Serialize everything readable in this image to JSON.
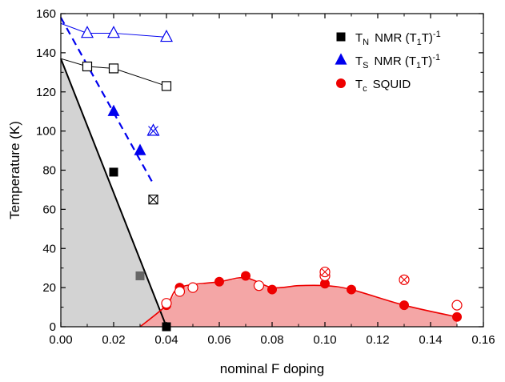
{
  "chart_data": {
    "type": "scatter",
    "title": "",
    "xlabel": "nominal F doping",
    "ylabel": "Temperature (K)",
    "xlim": [
      0.0,
      0.16
    ],
    "ylim": [
      0,
      160
    ],
    "xticks": [
      "0.00",
      "0.02",
      "0.04",
      "0.06",
      "0.08",
      "0.10",
      "0.12",
      "0.14",
      "0.16"
    ],
    "yticks": [
      "0",
      "20",
      "40",
      "60",
      "80",
      "100",
      "120",
      "140",
      "160"
    ],
    "legend_position": "top-right",
    "legend": [
      {
        "marker": "filled-square",
        "color": "#000000",
        "main": "T",
        "sub": "N",
        "text": "NMR (T",
        "sub2": "1",
        "tail": "T)",
        "sup": "-1"
      },
      {
        "marker": "filled-triangle",
        "color": "#0000ee",
        "main": "T",
        "sub": "S",
        "text": "NMR (T",
        "sub2": "1",
        "tail": "T)",
        "sup": "-1"
      },
      {
        "marker": "filled-circle",
        "color": "#ee0000",
        "main": "T",
        "sub": "c",
        "text": "SQUID",
        "sub2": "",
        "tail": "",
        "sup": ""
      }
    ],
    "series": [
      {
        "key": "tn_nmr",
        "color": "#000000",
        "marker": "filled-square",
        "points": [
          [
            0.02,
            79
          ],
          [
            0.03,
            26
          ],
          [
            0.04,
            0
          ]
        ]
      },
      {
        "key": "ts_nmr",
        "color": "#0000ee",
        "marker": "filled-triangle",
        "points": [
          [
            0.02,
            110
          ],
          [
            0.03,
            90
          ]
        ]
      },
      {
        "key": "tc_squid",
        "color": "#ee0000",
        "marker": "filled-circle",
        "points": [
          [
            0.04,
            11
          ],
          [
            0.045,
            20
          ],
          [
            0.06,
            23
          ],
          [
            0.07,
            26
          ],
          [
            0.08,
            19
          ],
          [
            0.1,
            22
          ],
          [
            0.11,
            19
          ],
          [
            0.13,
            11
          ],
          [
            0.15,
            5
          ]
        ]
      },
      {
        "key": "tc_open",
        "color": "#ee0000",
        "marker": "open-circle",
        "points": [
          [
            0.04,
            12
          ],
          [
            0.045,
            18
          ],
          [
            0.05,
            20
          ],
          [
            0.075,
            21
          ],
          [
            0.1,
            26
          ],
          [
            0.15,
            11
          ]
        ]
      },
      {
        "key": "tc_crossed",
        "color": "#ee0000",
        "marker": "crossed-circle",
        "points": [
          [
            0.1,
            28
          ],
          [
            0.13,
            24
          ]
        ]
      },
      {
        "key": "tn_open",
        "color": "#000000",
        "marker": "open-square",
        "points": [
          [
            0.01,
            133
          ],
          [
            0.02,
            132
          ],
          [
            0.04,
            123
          ]
        ]
      },
      {
        "key": "ts_open",
        "color": "#0000ee",
        "marker": "open-triangle",
        "points": [
          [
            0.01,
            150
          ],
          [
            0.02,
            150
          ],
          [
            0.04,
            148
          ]
        ]
      },
      {
        "key": "tn_crossed",
        "color": "#000000",
        "marker": "crossed-square",
        "points": [
          [
            0.035,
            65
          ]
        ]
      },
      {
        "key": "ts_crossed",
        "color": "#0000ee",
        "marker": "crossed-triangle",
        "points": [
          [
            0.035,
            100
          ]
        ]
      }
    ],
    "lines": [
      {
        "key": "tn_line",
        "color": "#000000",
        "style": "solid",
        "points": [
          [
            0.0,
            137
          ],
          [
            0.04,
            0
          ]
        ]
      },
      {
        "key": "ts_line",
        "color": "#0000ee",
        "style": "dashed",
        "points": [
          [
            0.0,
            158
          ],
          [
            0.035,
            73
          ]
        ]
      },
      {
        "key": "tn_open_line",
        "color": "#000000",
        "style": "thin",
        "points": [
          [
            0.0,
            137
          ],
          [
            0.01,
            133
          ],
          [
            0.02,
            132
          ],
          [
            0.04,
            123
          ]
        ]
      },
      {
        "key": "ts_open_line",
        "color": "#0000ee",
        "style": "thin",
        "points": [
          [
            0.0,
            155
          ],
          [
            0.01,
            150
          ],
          [
            0.02,
            150
          ],
          [
            0.04,
            148
          ]
        ]
      }
    ],
    "areas": [
      {
        "key": "afm_region",
        "color": "#d3d3d3",
        "points": [
          [
            0.0,
            0
          ],
          [
            0.0,
            137
          ],
          [
            0.04,
            0
          ]
        ]
      },
      {
        "key": "sc_region",
        "color": "#f4a6a6",
        "points": [
          [
            0.03,
            0
          ],
          [
            0.04,
            11
          ],
          [
            0.045,
            20
          ],
          [
            0.06,
            23
          ],
          [
            0.07,
            25
          ],
          [
            0.08,
            20
          ],
          [
            0.09,
            21
          ],
          [
            0.1,
            21
          ],
          [
            0.11,
            19
          ],
          [
            0.13,
            11
          ],
          [
            0.15,
            5
          ],
          [
            0.15,
            0
          ]
        ]
      }
    ],
    "curve": {
      "key": "tc_curve",
      "color": "#ee0000",
      "points": [
        [
          0.03,
          0
        ],
        [
          0.04,
          11
        ],
        [
          0.045,
          20
        ],
        [
          0.06,
          23
        ],
        [
          0.07,
          25
        ],
        [
          0.08,
          20
        ],
        [
          0.09,
          21
        ],
        [
          0.1,
          21
        ],
        [
          0.11,
          19
        ],
        [
          0.13,
          11
        ],
        [
          0.15,
          5
        ]
      ]
    }
  }
}
